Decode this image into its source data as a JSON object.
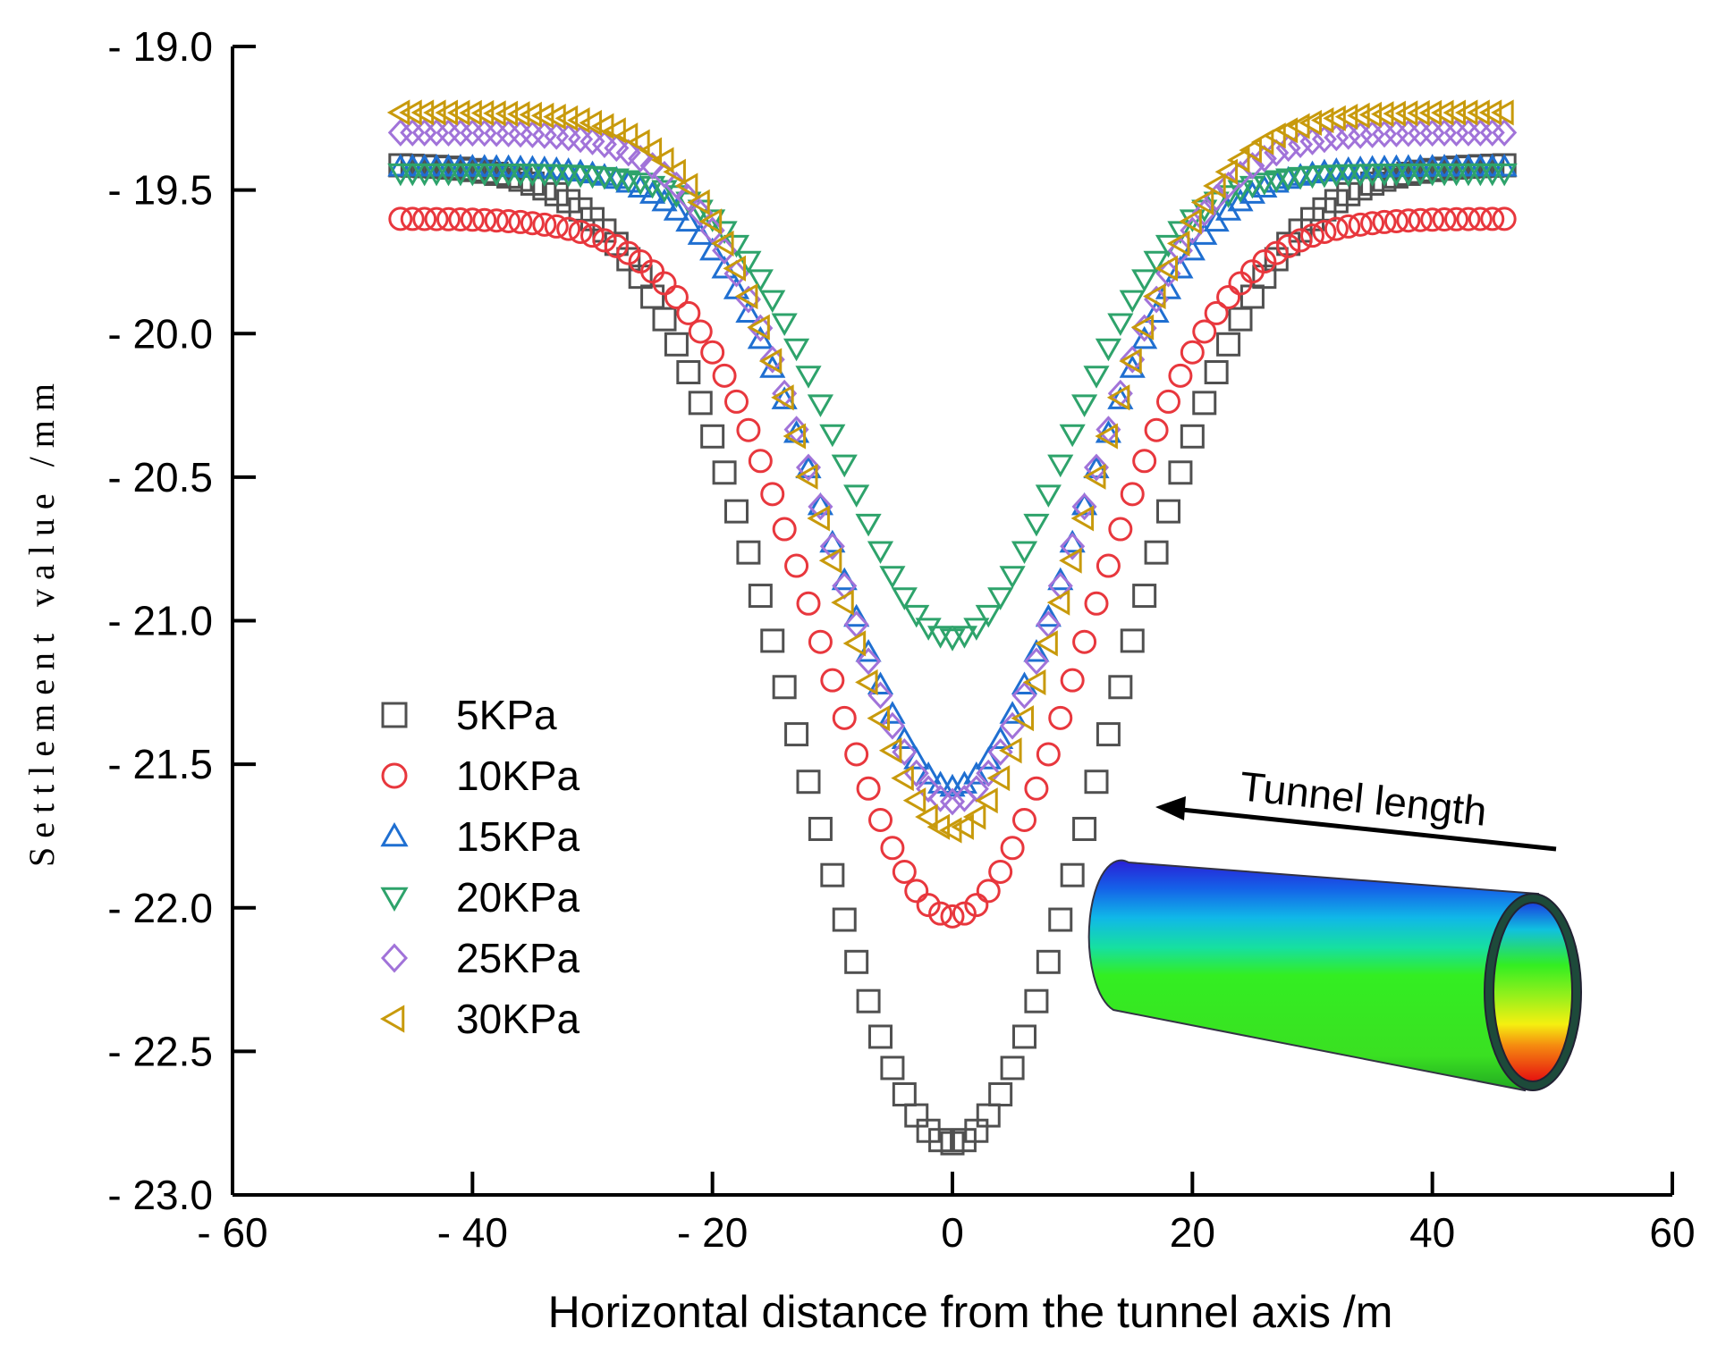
{
  "chart_data": {
    "type": "scatter",
    "title": "",
    "xlabel": "Horizontal distance from the tunnel axis /m",
    "ylabel": "Settlement value /mm",
    "xlim": [
      -60,
      60
    ],
    "ylim": [
      -23.0,
      -19.0
    ],
    "x_ticks": [
      -60,
      -40,
      -20,
      0,
      20,
      40,
      60
    ],
    "x_tick_labels": [
      "- 60",
      "- 40",
      "- 20",
      "0",
      "20",
      "40",
      "60"
    ],
    "y_ticks": [
      -19.0,
      -19.5,
      -20.0,
      -20.5,
      -21.0,
      -21.5,
      -22.0,
      -22.5,
      -23.0
    ],
    "y_tick_labels": [
      "- 19.0",
      "- 19.5",
      "- 20.0",
      "- 20.5",
      "- 21.0",
      "- 21.5",
      "- 22.0",
      "- 22.5",
      "- 23.0"
    ],
    "grid": false,
    "legend_position": "center-left",
    "x_range": [
      -46,
      46
    ],
    "x_step": 1,
    "series": [
      {
        "name": "5KPa",
        "marker": "square",
        "color": "#505050",
        "far_value": -19.41,
        "min_value": -22.82,
        "width": 12.5
      },
      {
        "name": "10KPa",
        "marker": "circle",
        "color": "#e8373d",
        "far_value": -19.6,
        "min_value": -22.03,
        "width": 11.0
      },
      {
        "name": "15KPa",
        "marker": "triangle-up",
        "color": "#1f6fd1",
        "far_value": -19.42,
        "min_value": -21.58,
        "width": 10.0
      },
      {
        "name": "20KPa",
        "marker": "triangle-down",
        "color": "#2ea36b",
        "far_value": -19.44,
        "min_value": -21.06,
        "width": 9.3
      },
      {
        "name": "25KPa",
        "marker": "diamond",
        "color": "#a173d9",
        "far_value": -19.3,
        "min_value": -21.63,
        "width": 10.2
      },
      {
        "name": "30KPa",
        "marker": "triangle-left",
        "color": "#c89a0c",
        "far_value": -19.23,
        "min_value": -21.73,
        "width": 10.3
      }
    ],
    "annotations": [
      {
        "text": "Tunnel length"
      }
    ]
  },
  "colors": {
    "tunnel_top": "#1a1acc",
    "tunnel_mid": "#33ee22",
    "tunnel_bottom_right": "#ee1100"
  }
}
